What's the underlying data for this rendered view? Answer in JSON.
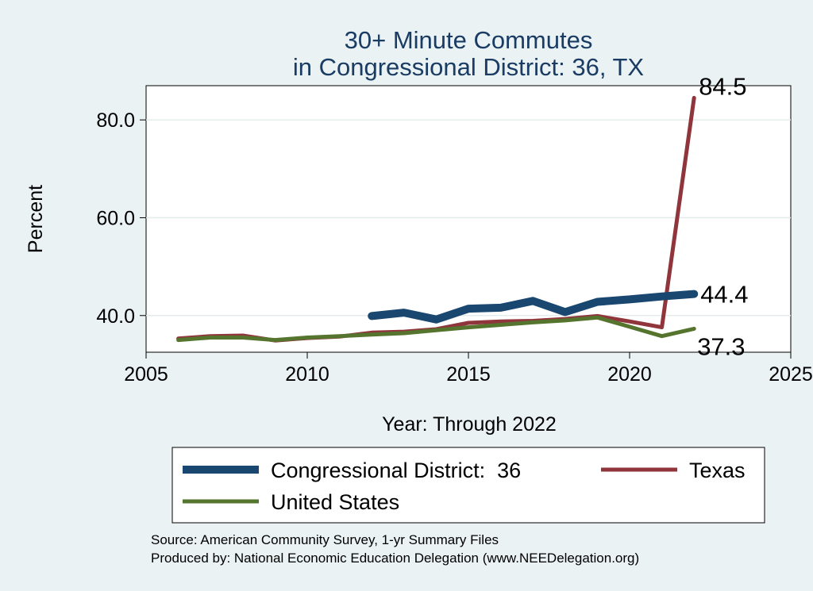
{
  "chart_data": {
    "type": "line",
    "title": "30+ Minute Commutes",
    "subtitle": "in Congressional District:  36, TX",
    "xlabel": "Year: Through 2022",
    "ylabel": "Percent",
    "xlim": [
      2005,
      2025
    ],
    "ylim": [
      32.5,
      87.0
    ],
    "x_ticks": [
      2005,
      2010,
      2015,
      2020,
      2025
    ],
    "y_ticks": [
      40.0,
      60.0,
      80.0
    ],
    "y_tick_labels": [
      "40.0",
      "60.0",
      "80.0"
    ],
    "grid": true,
    "legend_position": "bottom",
    "series": [
      {
        "name": "Congressional District:  36",
        "color": "#1a476f",
        "x": [
          2012,
          2013,
          2014,
          2015,
          2016,
          2017,
          2018,
          2019,
          2020,
          2021,
          2022
        ],
        "values": [
          39.9,
          40.6,
          39.2,
          41.4,
          41.6,
          43.0,
          40.7,
          42.8,
          43.3,
          43.9,
          44.4
        ],
        "end_label": "44.4"
      },
      {
        "name": "Texas",
        "color": "#90353b",
        "x": [
          2006,
          2007,
          2008,
          2009,
          2010,
          2011,
          2012,
          2013,
          2014,
          2015,
          2016,
          2017,
          2018,
          2019,
          2020,
          2021,
          2022
        ],
        "values": [
          35.3,
          35.8,
          35.9,
          34.9,
          35.4,
          35.7,
          36.5,
          36.7,
          37.2,
          38.5,
          38.8,
          38.9,
          39.3,
          39.9,
          38.8,
          37.6,
          84.5
        ],
        "end_label": "84.5"
      },
      {
        "name": "United States",
        "color": "#55752f",
        "x": [
          2006,
          2007,
          2008,
          2009,
          2010,
          2011,
          2012,
          2013,
          2014,
          2015,
          2016,
          2017,
          2018,
          2019,
          2020,
          2021,
          2022
        ],
        "values": [
          35.0,
          35.5,
          35.5,
          35.0,
          35.5,
          35.8,
          36.1,
          36.4,
          37.0,
          37.6,
          38.1,
          38.6,
          39.0,
          39.6,
          37.7,
          35.8,
          37.3
        ],
        "end_label": "37.3"
      }
    ],
    "source_lines": [
      "Source: American Community Survey, 1-yr Summary Files",
      "Produced by: National Economic Education Delegation (www.NEEDelegation.org)"
    ]
  }
}
